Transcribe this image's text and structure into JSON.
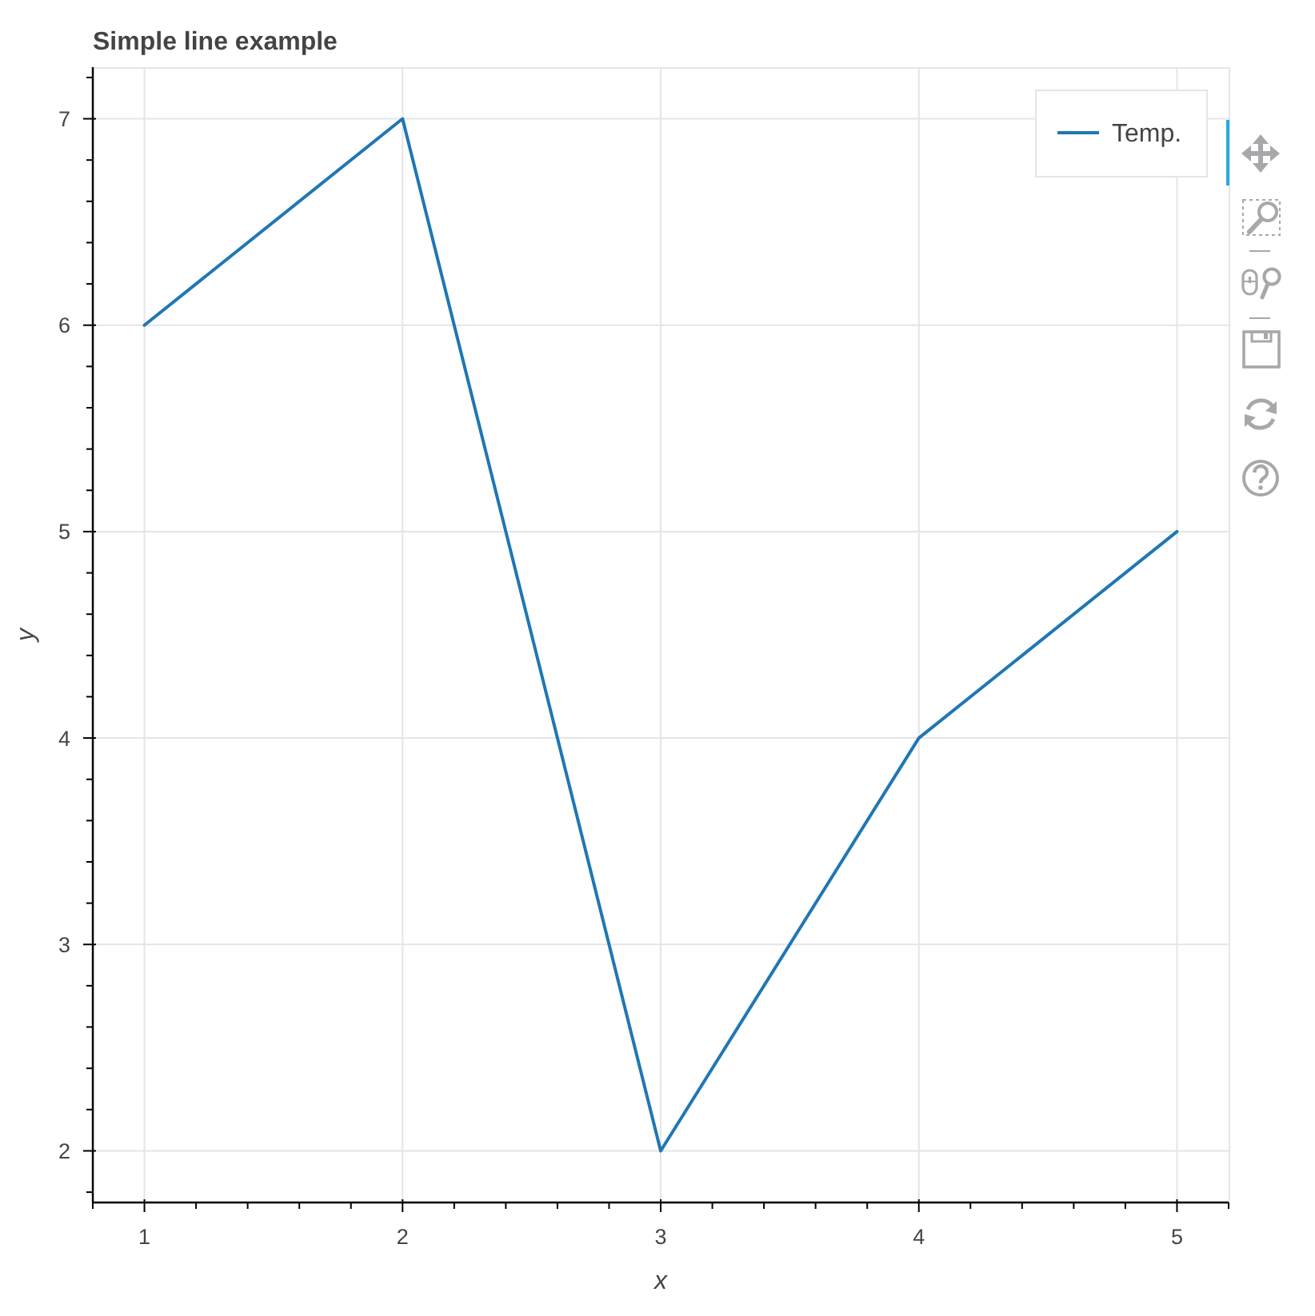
{
  "chart_data": {
    "type": "line",
    "title": "Simple line example",
    "xlabel": "x",
    "ylabel": "y",
    "x": [
      1,
      2,
      3,
      4,
      5
    ],
    "series": [
      {
        "name": "Temp.",
        "color": "#1f77b4",
        "values": [
          6,
          7,
          2,
          4,
          5
        ]
      }
    ],
    "xlim": [
      0.8,
      5.2
    ],
    "ylim": [
      1.75,
      7.25
    ],
    "xticks": [
      {
        "value": 0.8,
        "label": null
      },
      1,
      {
        "value": 1.2,
        "label": null
      },
      {
        "value": 1.4,
        "label": null
      },
      {
        "value": 1.6,
        "label": null
      },
      {
        "value": 1.8,
        "label": null
      },
      2,
      {
        "value": 2.2,
        "label": null
      },
      {
        "value": 2.4,
        "label": null
      },
      {
        "value": 2.6,
        "label": null
      },
      {
        "value": 2.8,
        "label": null
      },
      3,
      {
        "value": 3.2,
        "label": null
      },
      {
        "value": 3.4,
        "label": null
      },
      {
        "value": 3.6,
        "label": null
      },
      {
        "value": 3.8,
        "label": null
      },
      4,
      {
        "value": 4.2,
        "label": null
      },
      {
        "value": 4.4,
        "label": null
      },
      {
        "value": 4.6,
        "label": null
      },
      {
        "value": 4.8,
        "label": null
      },
      5,
      {
        "value": 5.2,
        "label": null
      }
    ],
    "yticks": [
      {
        "value": 1.8,
        "label": null
      },
      2,
      {
        "value": 2.2,
        "label": null
      },
      {
        "value": 2.4,
        "label": null
      },
      {
        "value": 2.6,
        "label": null
      },
      {
        "value": 2.8,
        "label": null
      },
      3,
      {
        "value": 3.2,
        "label": null
      },
      {
        "value": 3.4,
        "label": null
      },
      {
        "value": 3.6,
        "label": null
      },
      {
        "value": 3.8,
        "label": null
      },
      4,
      {
        "value": 4.2,
        "label": null
      },
      {
        "value": 4.4,
        "label": null
      },
      {
        "value": 4.6,
        "label": null
      },
      {
        "value": 4.8,
        "label": null
      },
      5,
      {
        "value": 5.2,
        "label": null
      },
      {
        "value": 5.4,
        "label": null
      },
      {
        "value": 5.6,
        "label": null
      },
      {
        "value": 5.8,
        "label": null
      },
      6,
      {
        "value": 6.2,
        "label": null
      },
      {
        "value": 6.4,
        "label": null
      },
      {
        "value": 6.6,
        "label": null
      },
      {
        "value": 6.8,
        "label": null
      },
      7,
      {
        "value": 7.2,
        "label": null
      }
    ],
    "grid": true,
    "legend": "top right",
    "line_style": "solid"
  }
}
